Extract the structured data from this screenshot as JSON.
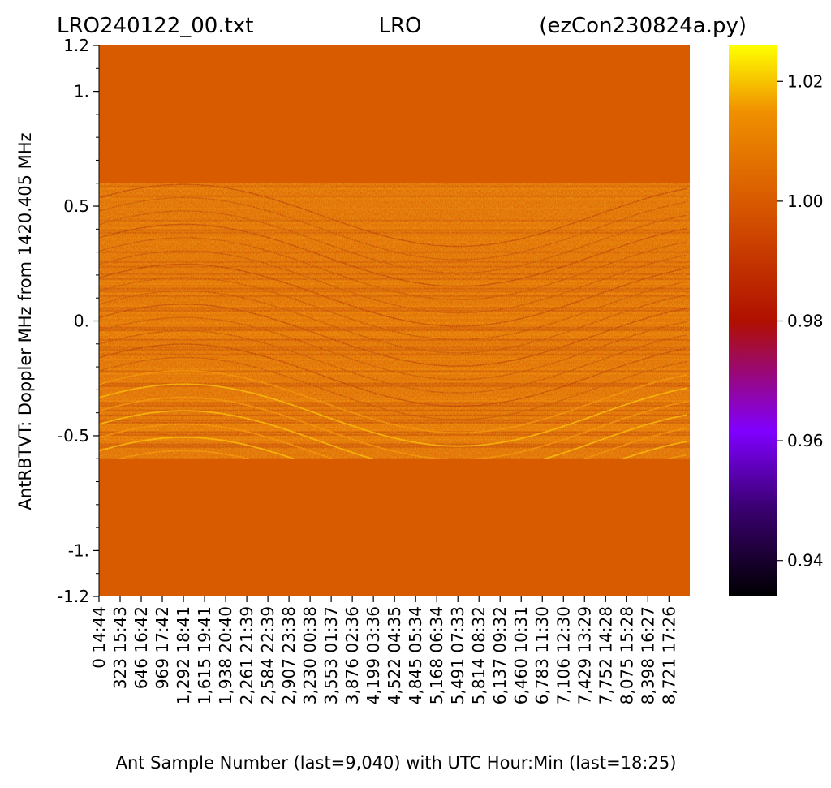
{
  "title": {
    "left": "LRO240122_00.txt",
    "center": "LRO",
    "right": "(ezCon230824a.py)"
  },
  "chart_data": {
    "type": "heatmap",
    "ylabel": "AntRBTVT:  Doppler MHz from 1420.405 MHz",
    "xlabel": "Ant Sample Number (last=9,040) with UTC Hour:Min (last=18:25)",
    "ylim": [
      -1.2,
      1.2
    ],
    "y_ticks": [
      {
        "value": 1.2,
        "label": "1.2"
      },
      {
        "value": 1.0,
        "label": "1."
      },
      {
        "value": 0.5,
        "label": "0.5"
      },
      {
        "value": 0.0,
        "label": "0."
      },
      {
        "value": -0.5,
        "label": "-0.5"
      },
      {
        "value": -1.0,
        "label": "-1."
      },
      {
        "value": -1.2,
        "label": "-1.2"
      }
    ],
    "x_range": [
      0,
      9040
    ],
    "x_ticks": [
      {
        "sample": 0,
        "label": "0",
        "time": "14:44"
      },
      {
        "sample": 323,
        "label": "323",
        "time": "15:43"
      },
      {
        "sample": 646,
        "label": "646",
        "time": "16:42"
      },
      {
        "sample": 969,
        "label": "969",
        "time": "17:42"
      },
      {
        "sample": 1292,
        "label": "1,292",
        "time": "18:41"
      },
      {
        "sample": 1615,
        "label": "1,615",
        "time": "19:41"
      },
      {
        "sample": 1938,
        "label": "1,938",
        "time": "20:40"
      },
      {
        "sample": 2261,
        "label": "2,261",
        "time": "21:39"
      },
      {
        "sample": 2584,
        "label": "2,584",
        "time": "22:39"
      },
      {
        "sample": 2907,
        "label": "2,907",
        "time": "23:38"
      },
      {
        "sample": 3230,
        "label": "3,230",
        "time": "00:38"
      },
      {
        "sample": 3553,
        "label": "3,553",
        "time": "01:37"
      },
      {
        "sample": 3876,
        "label": "3,876",
        "time": "02:36"
      },
      {
        "sample": 4199,
        "label": "4,199",
        "time": "03:36"
      },
      {
        "sample": 4522,
        "label": "4,522",
        "time": "04:35"
      },
      {
        "sample": 4845,
        "label": "4,845",
        "time": "05:34"
      },
      {
        "sample": 5168,
        "label": "5,168",
        "time": "06:34"
      },
      {
        "sample": 5491,
        "label": "5,491",
        "time": "07:33"
      },
      {
        "sample": 5814,
        "label": "5,814",
        "time": "08:32"
      },
      {
        "sample": 6137,
        "label": "6,137",
        "time": "09:32"
      },
      {
        "sample": 6460,
        "label": "6,460",
        "time": "10:31"
      },
      {
        "sample": 6783,
        "label": "6,783",
        "time": "11:30"
      },
      {
        "sample": 7106,
        "label": "7,106",
        "time": "12:30"
      },
      {
        "sample": 7429,
        "label": "7,429",
        "time": "13:29"
      },
      {
        "sample": 7752,
        "label": "7,752",
        "time": "14:28"
      },
      {
        "sample": 8075,
        "label": "8,075",
        "time": "15:28"
      },
      {
        "sample": 8398,
        "label": "8,398",
        "time": "16:27"
      },
      {
        "sample": 8721,
        "label": "8,721",
        "time": "17:26"
      }
    ],
    "data_band": {
      "y_min": -0.6,
      "y_max": 0.6
    },
    "background_value": 1.0,
    "colorbar": {
      "colormap": "gnuplot",
      "range": [
        0.934,
        1.026
      ],
      "ticks": [
        {
          "value": 1.02,
          "label": "1.02"
        },
        {
          "value": 1.0,
          "label": "1.00"
        },
        {
          "value": 0.98,
          "label": "0.98"
        },
        {
          "value": 0.96,
          "label": "0.96"
        },
        {
          "value": 0.94,
          "label": "0.94"
        }
      ]
    },
    "colors": {
      "fill": "#d95b00",
      "band_dark": "#b83800",
      "band_light": "#f08a00",
      "band_bright": "#f7b400",
      "cmap_top": "#ffff00",
      "cmap_mid": "#ff6000",
      "cmap_purple": "#8000ff",
      "cmap_bottom": "#000000"
    }
  }
}
